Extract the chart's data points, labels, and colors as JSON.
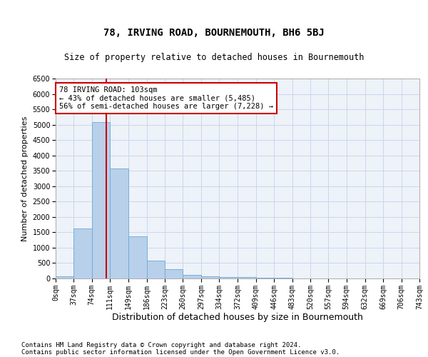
{
  "title": "78, IRVING ROAD, BOURNEMOUTH, BH6 5BJ",
  "subtitle": "Size of property relative to detached houses in Bournemouth",
  "xlabel": "Distribution of detached houses by size in Bournemouth",
  "ylabel": "Number of detached properties",
  "footnote1": "Contains HM Land Registry data © Crown copyright and database right 2024.",
  "footnote2": "Contains public sector information licensed under the Open Government Licence v3.0.",
  "bar_edges": [
    0,
    37,
    74,
    111,
    149,
    186,
    223,
    260,
    297,
    334,
    372,
    409,
    446,
    483,
    520,
    557,
    594,
    632,
    669,
    706,
    743
  ],
  "bar_heights": [
    75,
    1625,
    5075,
    3575,
    1375,
    575,
    300,
    125,
    75,
    50,
    50,
    25,
    25,
    10,
    5,
    5,
    5,
    5,
    5,
    5
  ],
  "bar_color": "#b8d0ea",
  "bar_edgecolor": "#6aaad4",
  "grid_color": "#c8d8ec",
  "property_size": 103,
  "vline_color": "#cc0000",
  "annotation_line1": "78 IRVING ROAD: 103sqm",
  "annotation_line2": "← 43% of detached houses are smaller (5,485)",
  "annotation_line3": "56% of semi-detached houses are larger (7,228) →",
  "annotation_box_color": "white",
  "annotation_border_color": "#cc0000",
  "ylim": [
    0,
    6500
  ],
  "yticks": [
    0,
    500,
    1000,
    1500,
    2000,
    2500,
    3000,
    3500,
    4000,
    4500,
    5000,
    5500,
    6000,
    6500
  ],
  "xtick_labels": [
    "0sqm",
    "37sqm",
    "74sqm",
    "111sqm",
    "149sqm",
    "186sqm",
    "223sqm",
    "260sqm",
    "297sqm",
    "334sqm",
    "372sqm",
    "409sqm",
    "446sqm",
    "483sqm",
    "520sqm",
    "557sqm",
    "594sqm",
    "632sqm",
    "669sqm",
    "706sqm",
    "743sqm"
  ],
  "title_fontsize": 10,
  "subtitle_fontsize": 8.5,
  "xlabel_fontsize": 9,
  "ylabel_fontsize": 8,
  "tick_fontsize": 7,
  "annotation_fontsize": 7.5,
  "footnote_fontsize": 6.5,
  "bg_color": "#eef2f9"
}
